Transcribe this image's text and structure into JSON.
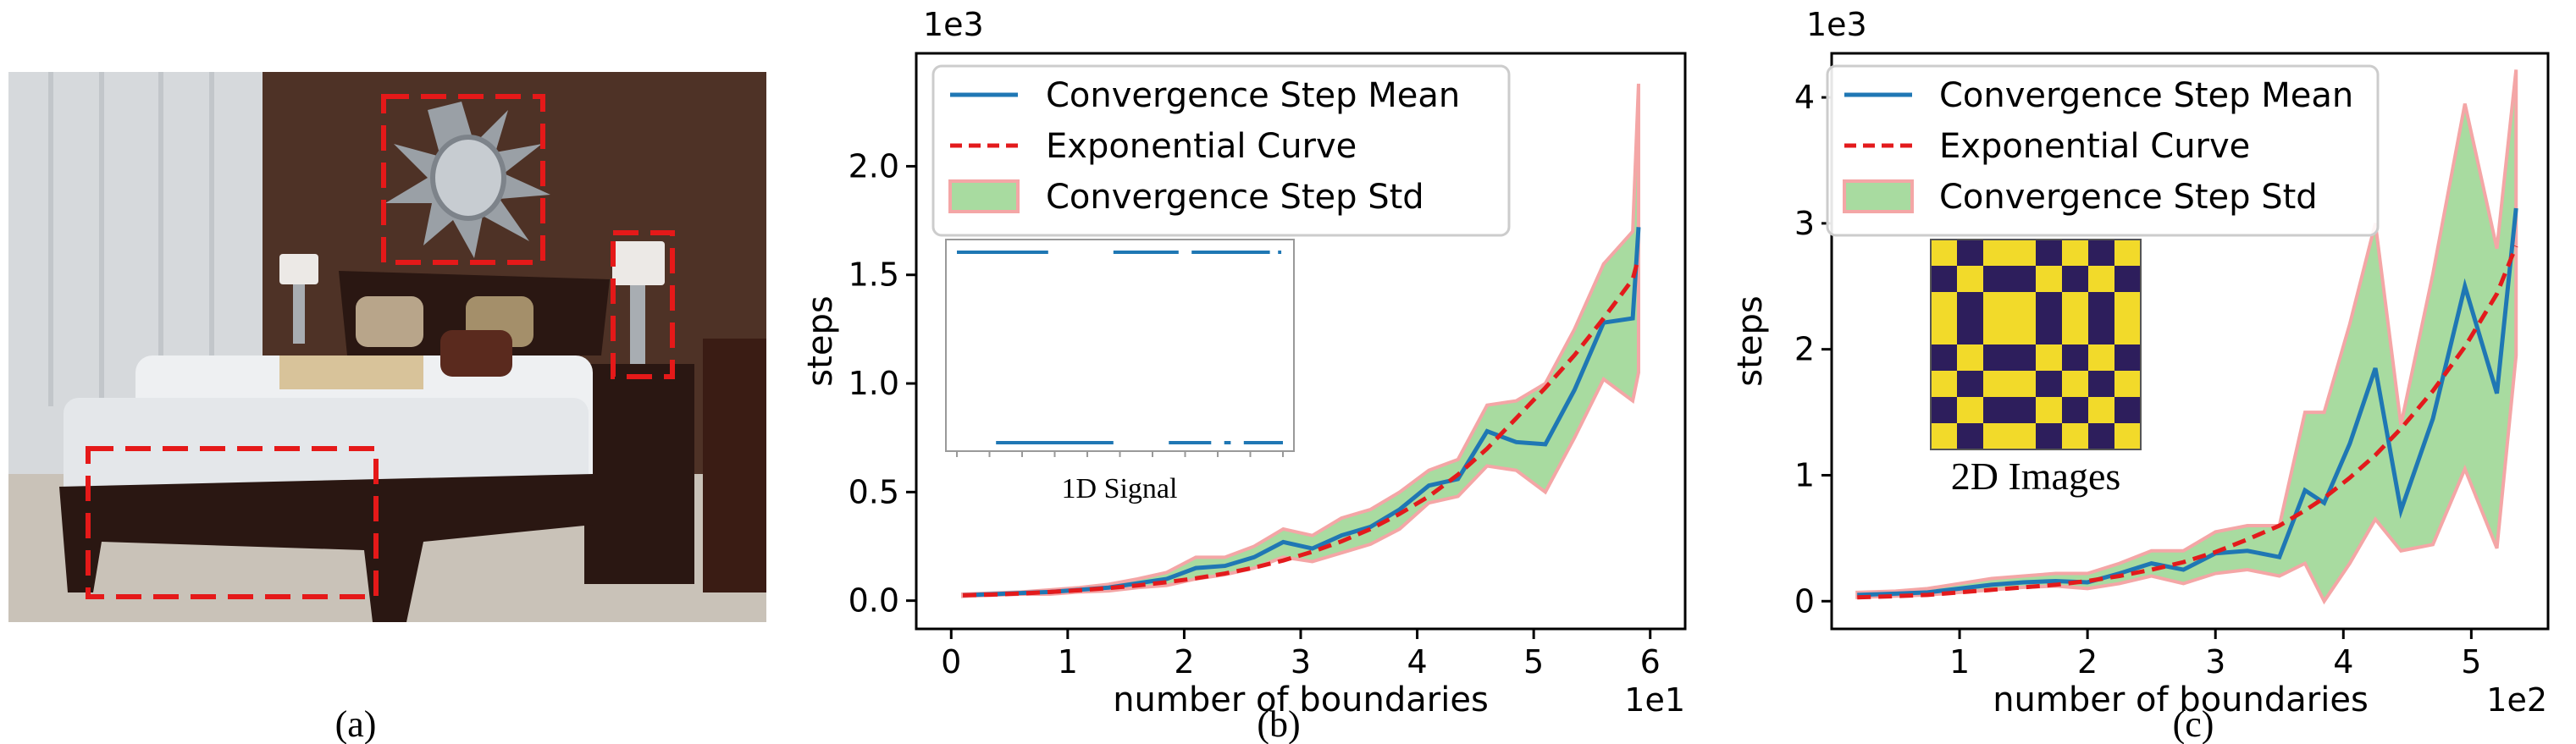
{
  "photo": {
    "caption": "(a)",
    "colors": {
      "wall": "#4e3226",
      "curtain": "#d6d9dc",
      "bed": "#eef0f2",
      "frame": "#2a1712",
      "floor": "#c9c2b8",
      "box": "#e51919"
    }
  },
  "panels": [
    {
      "caption": "(b)",
      "multiplier_y": "1e3",
      "multiplier_x": "1e1",
      "inset_caption": "1D Signal",
      "legend": [
        "Convergence Step Mean",
        "Exponential Curve",
        "Convergence Step Std"
      ],
      "colors": {
        "mean": "#1f77b4",
        "curve": "#e31a1c",
        "std_fill": "#a8dba0",
        "std_edge": "#f4a6a6"
      }
    },
    {
      "caption": "(c)",
      "multiplier_y": "1e3",
      "multiplier_x": "1e2",
      "inset_caption": "2D Images",
      "legend": [
        "Convergence Step Mean",
        "Exponential Curve",
        "Convergence Step Std"
      ],
      "colors": {
        "mean": "#1f77b4",
        "curve": "#e31a1c",
        "std_fill": "#a8dba0",
        "std_edge": "#f4a6a6",
        "grid_dark": "#2d1e5c",
        "grid_light": "#f2da2a"
      }
    }
  ],
  "chart_data": [
    {
      "type": "line",
      "xlabel": "number of boundaries",
      "ylabel": "steps",
      "xlim": [
        -0.3,
        6.3
      ],
      "ylim": [
        -0.13,
        2.52
      ],
      "xticks": [
        0,
        1,
        2,
        3,
        4,
        5,
        6
      ],
      "yticks": [
        0.0,
        0.5,
        1.0,
        1.5,
        2.0
      ],
      "ytick_labels": [
        "0.0",
        "0.5",
        "1.0",
        "1.5",
        "2.0"
      ],
      "x": [
        0.1,
        0.35,
        0.6,
        0.85,
        1.1,
        1.35,
        1.6,
        1.85,
        2.1,
        2.35,
        2.6,
        2.85,
        3.1,
        3.35,
        3.6,
        3.85,
        4.1,
        4.35,
        4.6,
        4.85,
        5.1,
        5.35,
        5.6,
        5.85,
        5.9
      ],
      "series": [
        {
          "name": "Convergence Step Mean",
          "values": [
            0.025,
            0.03,
            0.035,
            0.04,
            0.05,
            0.06,
            0.08,
            0.1,
            0.15,
            0.16,
            0.2,
            0.27,
            0.24,
            0.3,
            0.34,
            0.42,
            0.53,
            0.56,
            0.78,
            0.73,
            0.72,
            0.97,
            1.28,
            1.3,
            1.72
          ]
        },
        {
          "name": "Exponential Curve",
          "values": [
            0.025,
            0.028,
            0.033,
            0.04,
            0.048,
            0.058,
            0.07,
            0.085,
            0.103,
            0.125,
            0.152,
            0.185,
            0.225,
            0.273,
            0.33,
            0.4,
            0.48,
            0.58,
            0.7,
            0.84,
            0.98,
            1.13,
            1.3,
            1.48,
            1.58
          ]
        },
        {
          "name": "Convergence Step Std upper",
          "values": [
            0.03,
            0.035,
            0.04,
            0.05,
            0.06,
            0.075,
            0.1,
            0.13,
            0.2,
            0.2,
            0.25,
            0.33,
            0.3,
            0.38,
            0.42,
            0.5,
            0.6,
            0.65,
            0.9,
            0.92,
            1.0,
            1.25,
            1.55,
            1.7,
            2.38
          ]
        },
        {
          "name": "Convergence Step Std lower",
          "values": [
            0.02,
            0.025,
            0.03,
            0.03,
            0.04,
            0.045,
            0.06,
            0.07,
            0.1,
            0.12,
            0.15,
            0.2,
            0.18,
            0.22,
            0.26,
            0.33,
            0.45,
            0.48,
            0.62,
            0.6,
            0.5,
            0.75,
            1.02,
            0.92,
            1.05
          ]
        }
      ],
      "inset": {
        "type": "signal",
        "high_segments": [
          [
            0.0,
            0.28
          ],
          [
            0.48,
            0.68
          ],
          [
            0.72,
            0.96
          ],
          [
            0.985,
            0.995
          ]
        ],
        "low_segments": [
          [
            0.12,
            0.48
          ],
          [
            0.65,
            0.78
          ],
          [
            0.82,
            0.84
          ],
          [
            0.88,
            1.0
          ]
        ]
      }
    },
    {
      "type": "line",
      "xlabel": "number of boundaries",
      "ylabel": "steps",
      "xlim": [
        0.0,
        5.6
      ],
      "ylim": [
        -0.22,
        4.35
      ],
      "xticks": [
        1,
        2,
        3,
        4,
        5
      ],
      "yticks": [
        0,
        1,
        2,
        3,
        4
      ],
      "ytick_labels": [
        "0",
        "1",
        "2",
        "3",
        "4"
      ],
      "x": [
        0.2,
        0.5,
        0.75,
        1.0,
        1.25,
        1.5,
        1.75,
        2.0,
        2.25,
        2.5,
        2.75,
        3.0,
        3.25,
        3.5,
        3.7,
        3.85,
        4.05,
        4.25,
        4.45,
        4.7,
        4.95,
        5.2,
        5.35
      ],
      "series": [
        {
          "name": "Convergence Step Mean",
          "values": [
            0.05,
            0.06,
            0.07,
            0.1,
            0.13,
            0.15,
            0.16,
            0.15,
            0.22,
            0.3,
            0.25,
            0.38,
            0.4,
            0.35,
            0.88,
            0.78,
            1.25,
            1.85,
            0.72,
            1.45,
            2.5,
            1.65,
            3.12
          ]
        },
        {
          "name": "Exponential Curve",
          "values": [
            0.03,
            0.04,
            0.05,
            0.07,
            0.09,
            0.11,
            0.13,
            0.16,
            0.2,
            0.25,
            0.31,
            0.39,
            0.49,
            0.6,
            0.72,
            0.82,
            0.98,
            1.16,
            1.37,
            1.67,
            2.02,
            2.44,
            2.82
          ]
        },
        {
          "name": "Convergence Step Std upper",
          "values": [
            0.07,
            0.08,
            0.1,
            0.14,
            0.18,
            0.2,
            0.22,
            0.22,
            0.3,
            0.4,
            0.4,
            0.55,
            0.6,
            0.6,
            1.5,
            1.5,
            2.2,
            3.0,
            1.4,
            2.6,
            3.95,
            2.8,
            4.22
          ]
        },
        {
          "name": "Convergence Step Std lower",
          "values": [
            0.03,
            0.04,
            0.05,
            0.07,
            0.09,
            0.11,
            0.12,
            0.1,
            0.14,
            0.2,
            0.14,
            0.22,
            0.25,
            0.2,
            0.3,
            0.0,
            0.3,
            0.65,
            0.4,
            0.45,
            1.05,
            0.42,
            1.95
          ]
        }
      ],
      "inset": {
        "type": "heatmap",
        "pattern": [
          1,
          0,
          1,
          1,
          0,
          1,
          0,
          1
        ]
      }
    }
  ]
}
